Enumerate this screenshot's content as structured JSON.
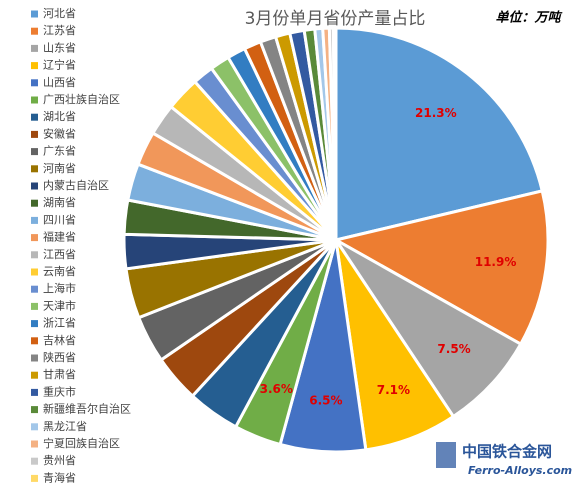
{
  "chart_data": {
    "type": "pie",
    "title": "3月份单月省份产量占比",
    "unit_note": "单位：万吨",
    "categories": [
      "河北省",
      "江苏省",
      "山东省",
      "辽宁省",
      "山西省",
      "广西壮族自治区",
      "湖北省",
      "安徽省",
      "广东省",
      "河南省",
      "内蒙古自治区",
      "湖南省",
      "四川省",
      "福建省",
      "江西省",
      "云南省",
      "上海市",
      "天津市",
      "浙江省",
      "吉林省",
      "陕西省",
      "甘肃省",
      "重庆市",
      "新疆维吾尔自治区",
      "黑龙江省",
      "宁夏回族自治区",
      "贵州省",
      "青海省"
    ],
    "values": [
      21.3,
      11.9,
      7.5,
      7.1,
      6.5,
      3.6,
      4.0,
      3.6,
      3.6,
      3.8,
      2.6,
      2.6,
      2.8,
      2.6,
      2.4,
      2.6,
      1.6,
      1.5,
      1.4,
      1.3,
      1.2,
      1.1,
      1.1,
      0.8,
      0.6,
      0.5,
      0.3,
      0.2
    ],
    "value_labels": [
      "21.3%",
      "11.9%",
      "7.5%",
      "7.1%",
      "6.5%",
      "3.6%",
      null,
      null,
      null,
      null,
      null,
      null,
      null,
      null,
      null,
      null,
      null,
      null,
      null,
      null,
      null,
      null,
      null,
      null,
      null,
      null,
      null,
      null
    ],
    "colors": [
      "#5B9BD5",
      "#ED7D31",
      "#A5A5A5",
      "#FFC000",
      "#4472C4",
      "#70AD47",
      "#255E91",
      "#9E480E",
      "#636363",
      "#997300",
      "#264478",
      "#43682B",
      "#7CAFDD",
      "#F1975A",
      "#B7B7B7",
      "#FFCD33",
      "#698ED0",
      "#8CC168",
      "#327DC2",
      "#D26012",
      "#848484",
      "#CC9A00",
      "#335AA1",
      "#5A8A39",
      "#A3C7E9",
      "#F4B183",
      "#C9C9C9",
      "#FFD966"
    ],
    "legend_position": "left"
  },
  "watermark": {
    "name": "中国铁合金网",
    "url": "Ferro-Alloys.com"
  }
}
